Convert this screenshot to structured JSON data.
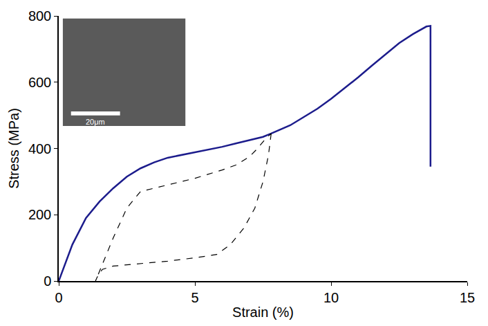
{
  "chart_data": {
    "type": "line",
    "x_label": "Strain (%)",
    "y_label": "Stress (MPa)",
    "xlim": [
      0,
      15
    ],
    "xticks": [
      0,
      5,
      10,
      15
    ],
    "ylim": [
      0,
      800
    ],
    "yticks": [
      0,
      200,
      400,
      600,
      800
    ],
    "grid": false,
    "annotations": [
      "20μm"
    ],
    "series": [
      {
        "color": "#1c1c8c",
        "line_style": "solid",
        "x": [
          0,
          0.5,
          1,
          1.5,
          2,
          2.5,
          3,
          3.5,
          4,
          4.5,
          5,
          5.5,
          6,
          6.5,
          7,
          7.5,
          7.8,
          8.5,
          9,
          9.5,
          10,
          10.5,
          11,
          11.5,
          12,
          12.5,
          13,
          13.5,
          13.65,
          13.65
        ],
        "values": [
          0,
          110,
          190,
          240,
          280,
          315,
          340,
          358,
          372,
          380,
          388,
          396,
          405,
          415,
          425,
          435,
          445,
          470,
          495,
          520,
          550,
          582,
          615,
          650,
          685,
          718,
          745,
          768,
          770,
          345
        ]
      },
      {
        "color": "#000000",
        "line_style": "dashed",
        "x": [
          7.8,
          7.7,
          7.5,
          7.2,
          6.8,
          6.3,
          5.8,
          5,
          4,
          3,
          2,
          1.6,
          1.4,
          1.35,
          1.6,
          2,
          2.5,
          3,
          4,
          5,
          6,
          6.5,
          7,
          7.3,
          7.6,
          7.8
        ],
        "values": [
          445,
          380,
          300,
          220,
          160,
          110,
          80,
          70,
          60,
          52,
          45,
          35,
          10,
          0,
          50,
          130,
          220,
          270,
          290,
          310,
          335,
          350,
          375,
          400,
          430,
          445
        ]
      }
    ]
  }
}
